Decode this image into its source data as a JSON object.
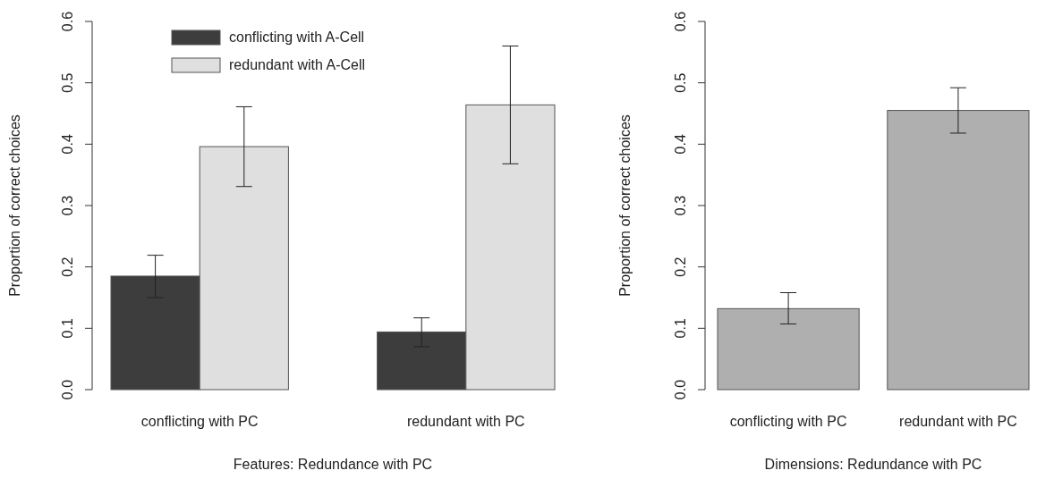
{
  "chart_data": [
    {
      "type": "bar",
      "xlabel": "Features: Redundance with PC",
      "ylabel": "Proportion of correct choices",
      "categories": [
        "conflicting with PC",
        "redundant with PC"
      ],
      "ylim": [
        0,
        0.6
      ],
      "yticks": [
        {
          "value": 0,
          "label": "0.0"
        },
        0.1,
        0.2,
        0.3,
        0.4,
        0.5,
        0.6
      ],
      "legend": "top",
      "grid": false,
      "series": [
        {
          "name": "conflicting with A-Cell",
          "color": "#3d3d3d",
          "values": [
            0.185,
            0.094
          ],
          "errors": [
            [
              0.15,
              0.219
            ],
            [
              0.07,
              0.117
            ]
          ]
        },
        {
          "name": "redundant with A-Cell",
          "color": "#dfdfdf",
          "values": [
            0.396,
            0.464
          ],
          "errors": [
            [
              0.331,
              0.461
            ],
            [
              0.368,
              0.56
            ]
          ]
        }
      ]
    },
    {
      "type": "bar",
      "xlabel": "Dimensions: Redundance with PC",
      "ylabel": "Proportion of correct choices",
      "categories": [
        "conflicting with PC",
        "redundant with PC"
      ],
      "ylim": [
        0,
        0.6
      ],
      "yticks": [
        {
          "value": 0,
          "label": "0.0"
        },
        0.1,
        0.2,
        0.3,
        0.4,
        0.5,
        0.6
      ],
      "grid": false,
      "color": "#afafaf",
      "values": [
        0.132,
        0.455
      ],
      "errors": [
        [
          0.107,
          0.158
        ],
        [
          0.418,
          0.492
        ]
      ]
    }
  ]
}
